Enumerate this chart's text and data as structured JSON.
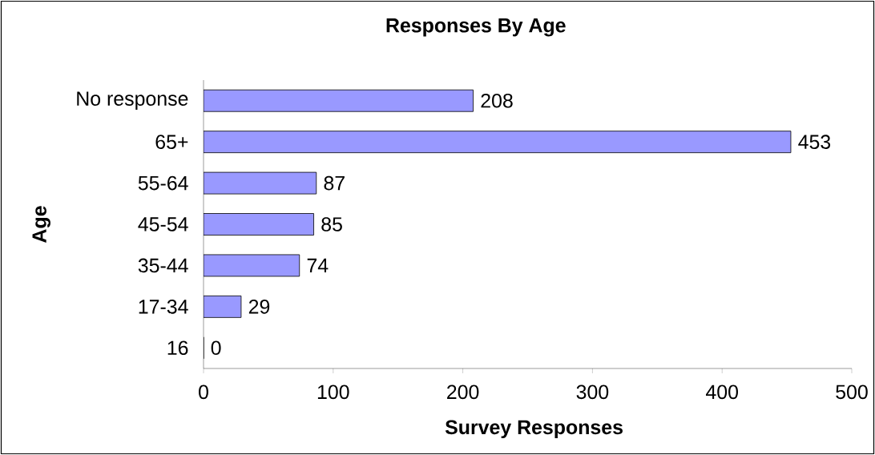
{
  "chart_data": {
    "type": "bar",
    "orientation": "horizontal",
    "title": "Responses By Age",
    "xlabel": "Survey Responses",
    "ylabel": "Age",
    "categories": [
      "No response",
      "65+",
      "55-64",
      "45-54",
      "35-44",
      "17-34",
      "16"
    ],
    "values": [
      208,
      453,
      87,
      85,
      74,
      29,
      0
    ],
    "color": "#9999ff",
    "xlim": [
      0,
      500
    ],
    "xticks": [
      0,
      100,
      200,
      300,
      400,
      500
    ],
    "data_labels": true
  }
}
